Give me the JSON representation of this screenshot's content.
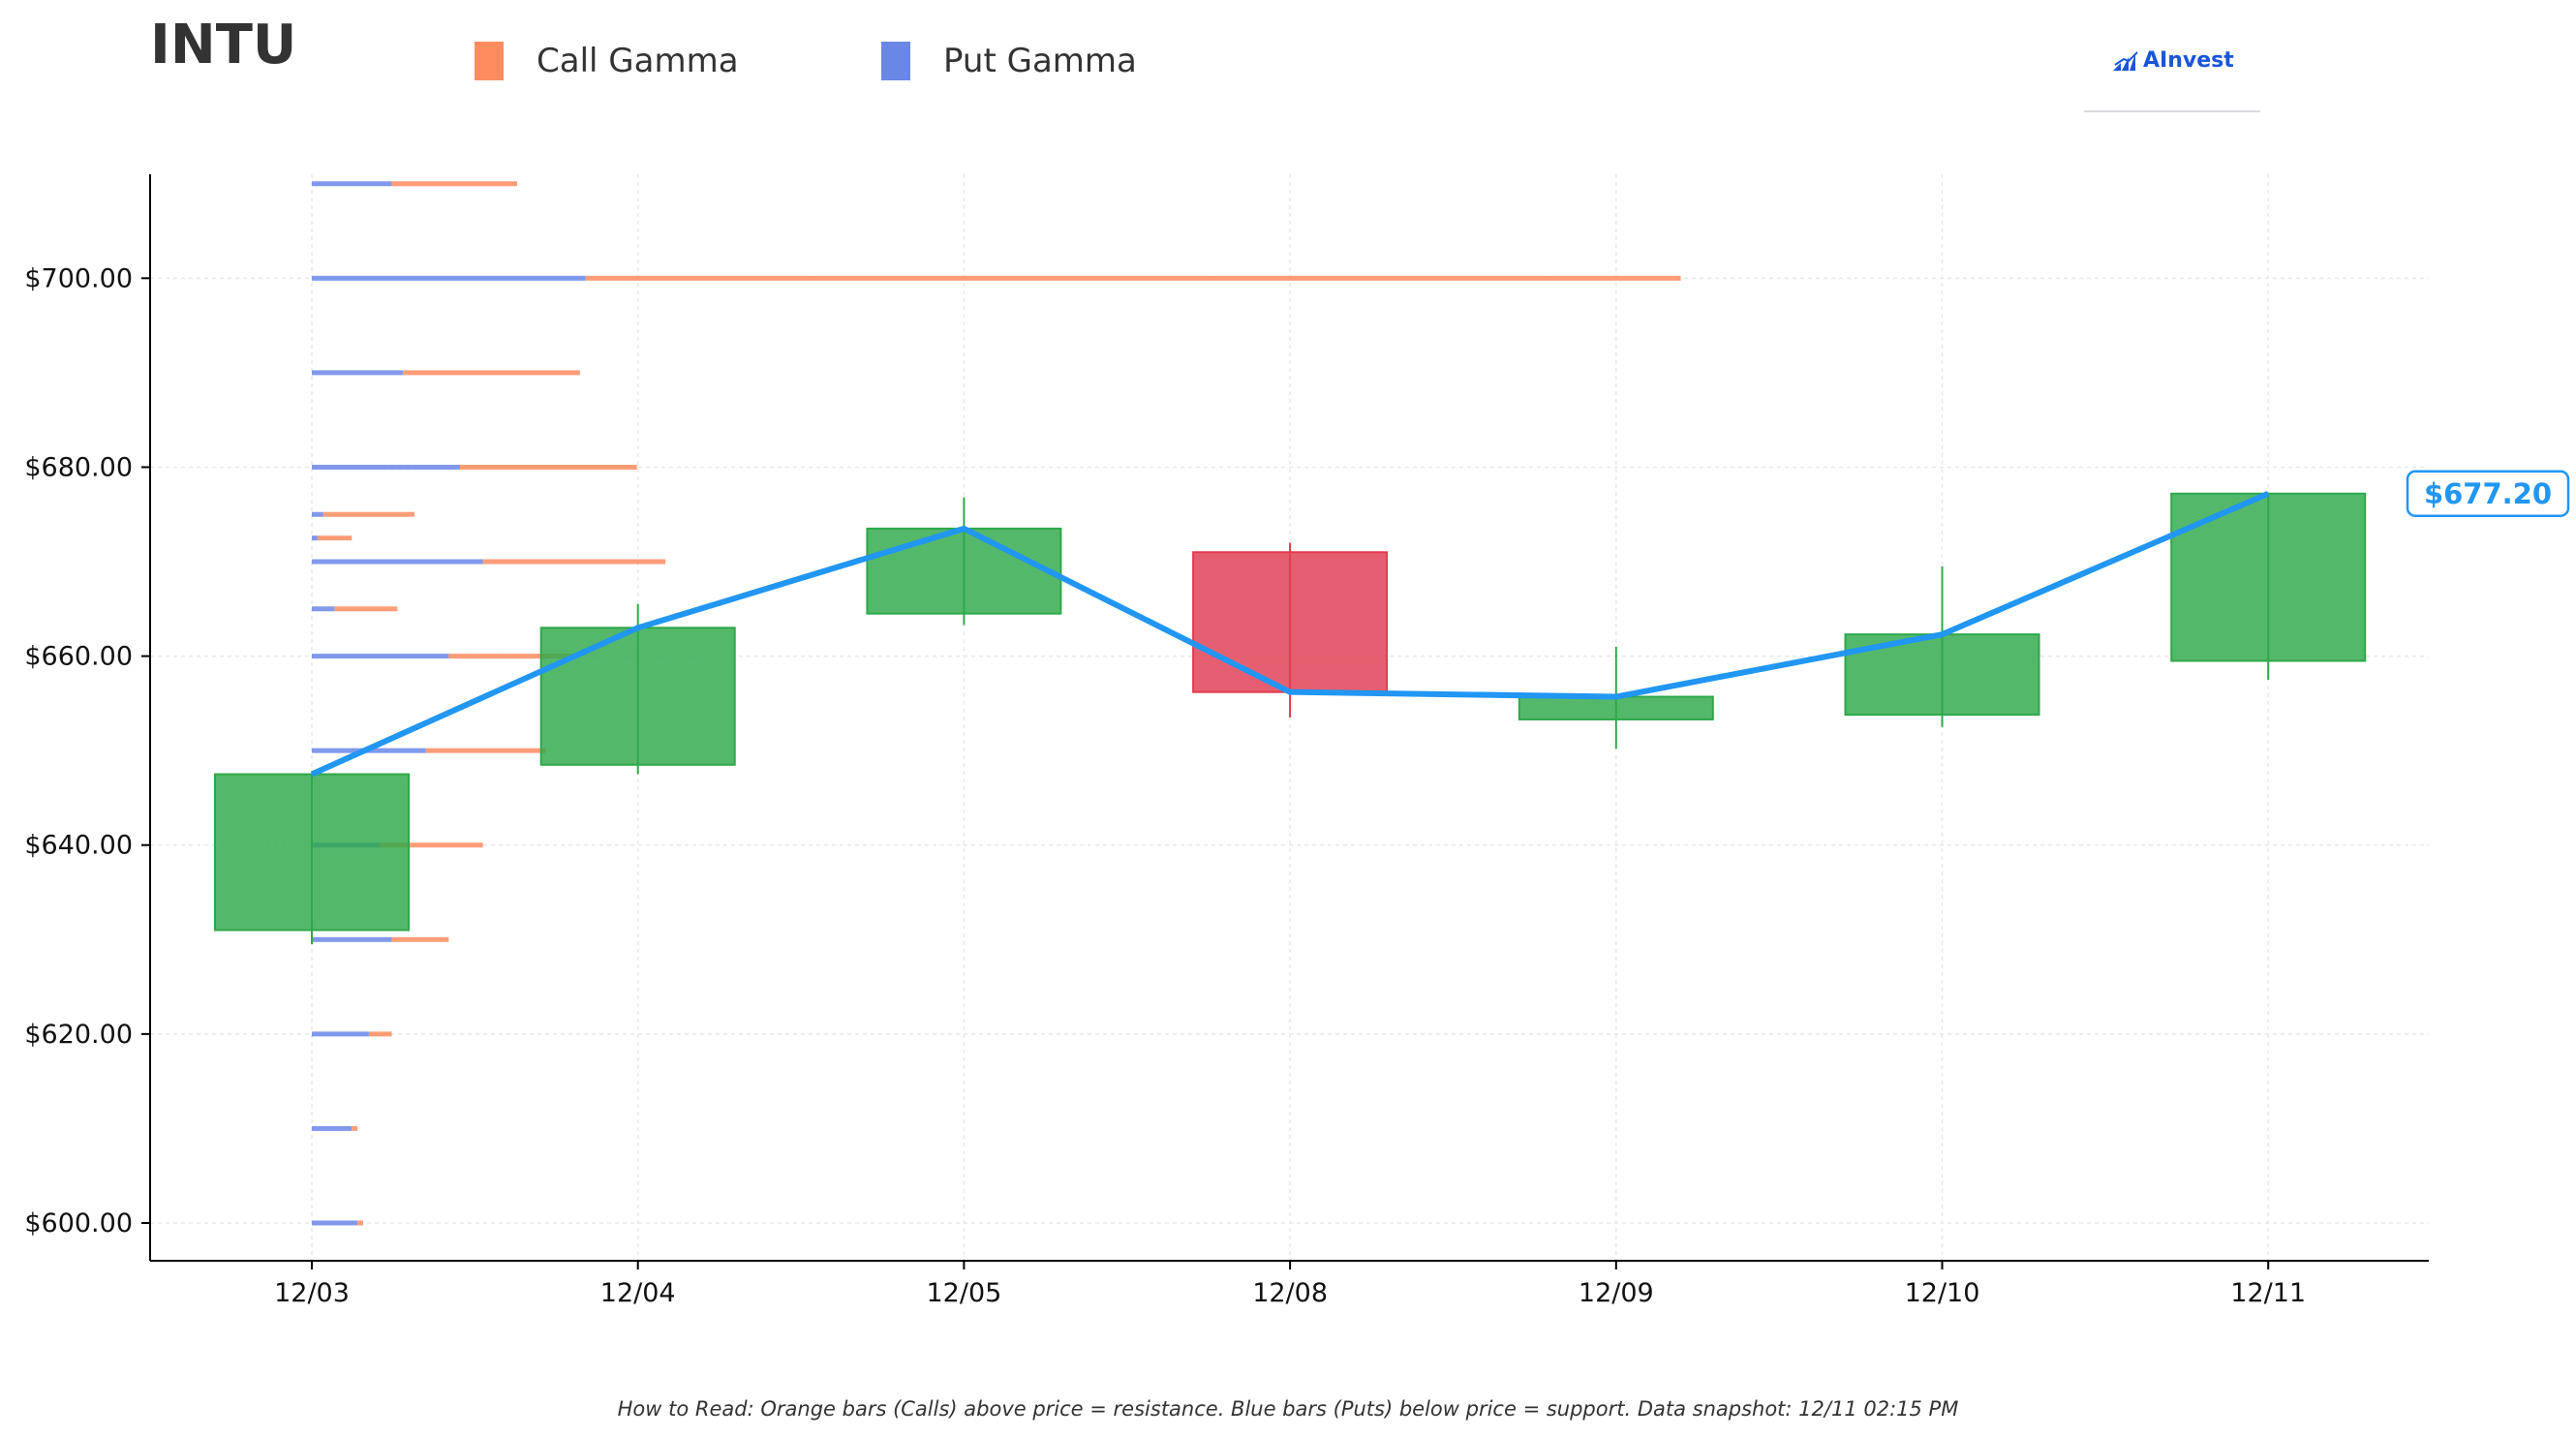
{
  "header": {
    "ticker": "INTU",
    "legend": [
      {
        "label": "Call Gamma",
        "color": "#ff8c5f"
      },
      {
        "label": "Put Gamma",
        "color": "#6a87e6"
      }
    ],
    "logo": "AInvest"
  },
  "footnote": "How to Read: Orange bars (Calls) above price = resistance. Blue bars (Puts) below price = support. Data snapshot: 12/11 02:15 PM",
  "colors": {
    "up": "#2ea84a",
    "down": "#e03c50",
    "line": "#2196f3",
    "call": "#ff8c5f",
    "put": "#6a87e6",
    "axis": "#000000",
    "grid": "#e9e9e9"
  },
  "chart_data": {
    "type": "candlestick",
    "title": "INTU",
    "categories": [
      "12/03",
      "12/04",
      "12/05",
      "12/08",
      "12/09",
      "12/10",
      "12/11"
    ],
    "ohlc": [
      {
        "date": "12/03",
        "open": 631,
        "high": 647.5,
        "low": 629.5,
        "close": 647.5
      },
      {
        "date": "12/04",
        "open": 648.5,
        "high": 665.5,
        "low": 647.5,
        "close": 663
      },
      {
        "date": "12/05",
        "open": 664.5,
        "high": 676.8,
        "low": 663.3,
        "close": 673.5
      },
      {
        "date": "12/08",
        "open": 671,
        "high": 672,
        "low": 653.5,
        "close": 656.2
      },
      {
        "date": "12/09",
        "open": 653.3,
        "high": 661,
        "low": 650.2,
        "close": 655.7
      },
      {
        "date": "12/10",
        "open": 653.8,
        "high": 669.5,
        "low": 652.5,
        "close": 662.3
      },
      {
        "date": "12/11",
        "open": 659.5,
        "high": 677.2,
        "low": 657.5,
        "close": 677.2
      }
    ],
    "close_line": [
      647.5,
      663,
      673.5,
      656.2,
      655.7,
      662.3,
      677.2
    ],
    "last_price_label": "$677.20",
    "last_price": 677.2,
    "gamma_strikes": [
      {
        "strike": 710,
        "put": 0.14,
        "call": 0.22
      },
      {
        "strike": 700,
        "put": 0.48,
        "call": 1.92
      },
      {
        "strike": 690,
        "put": 0.16,
        "call": 0.31
      },
      {
        "strike": 680,
        "put": 0.26,
        "call": 0.31
      },
      {
        "strike": 675,
        "put": 0.02,
        "call": 0.16
      },
      {
        "strike": 672.5,
        "put": 0.01,
        "call": 0.06
      },
      {
        "strike": 670,
        "put": 0.3,
        "call": 0.32
      },
      {
        "strike": 665,
        "put": 0.04,
        "call": 0.11
      },
      {
        "strike": 660,
        "put": 0.24,
        "call": 0.22
      },
      {
        "strike": 650,
        "put": 0.2,
        "call": 0.21
      },
      {
        "strike": 640,
        "put": 0.12,
        "call": 0.18
      },
      {
        "strike": 630,
        "put": 0.14,
        "call": 0.1
      },
      {
        "strike": 620,
        "put": 0.1,
        "call": 0.04
      },
      {
        "strike": 610,
        "put": 0.07,
        "call": 0.01
      },
      {
        "strike": 600,
        "put": 0.08,
        "call": 0.01
      }
    ],
    "gamma_axis_max": 2.0,
    "ylim": [
      596,
      711
    ],
    "yticks": [
      600,
      620,
      640,
      660,
      680,
      700
    ],
    "ytick_labels": [
      "$600.00",
      "$620.00",
      "$640.00",
      "$660.00",
      "$680.00",
      "$700.00"
    ],
    "grid": true,
    "legend_position": "top-left"
  }
}
